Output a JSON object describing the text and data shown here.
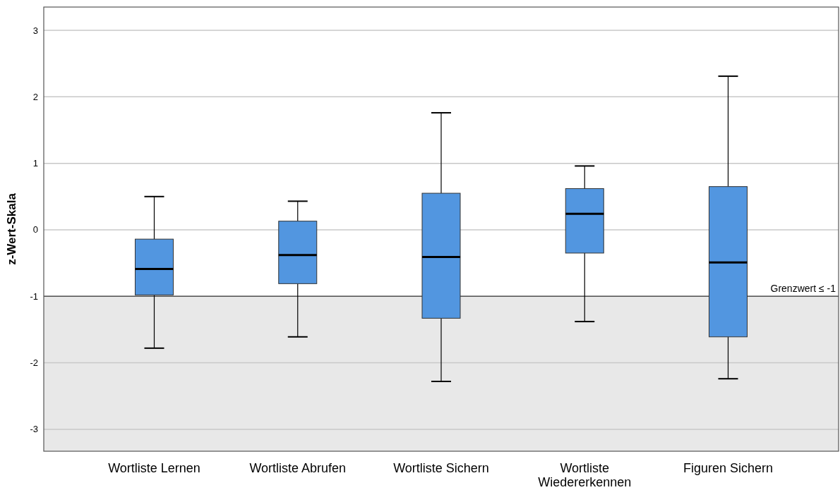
{
  "chart_data": {
    "type": "box",
    "ylabel": "z-Wert-Skala",
    "categories": [
      "Wortliste Lernen",
      "Wortliste Abrufen",
      "Wortliste Sichern",
      "Wortliste Wiedererkennen",
      "Figuren Sichern"
    ],
    "boxes": [
      {
        "low": -1.78,
        "q1": -0.98,
        "median": -0.59,
        "q3": -0.14,
        "high": 0.5
      },
      {
        "low": -1.61,
        "q1": -0.81,
        "median": -0.38,
        "q3": 0.13,
        "high": 0.43
      },
      {
        "low": -2.28,
        "q1": -1.33,
        "median": -0.41,
        "q3": 0.55,
        "high": 1.76
      },
      {
        "low": -1.38,
        "q1": -0.35,
        "median": 0.24,
        "q3": 0.62,
        "high": 0.96
      },
      {
        "low": -2.24,
        "q1": -1.61,
        "median": -0.49,
        "q3": 0.65,
        "high": 2.31
      }
    ],
    "color": "#5296e0",
    "ylim": [
      -3.33,
      3.35
    ],
    "yticks": [
      -3,
      -2,
      -1,
      0,
      1,
      2,
      3
    ],
    "grid": "y",
    "ref_lines": [
      {
        "axis": "y",
        "value": -1,
        "label": "Grenzwert ≤ -1",
        "color": "#555555"
      }
    ],
    "bands": [
      {
        "axis": "y",
        "from": -3.33,
        "to": -1,
        "color": "#e8e8e8"
      }
    ]
  }
}
